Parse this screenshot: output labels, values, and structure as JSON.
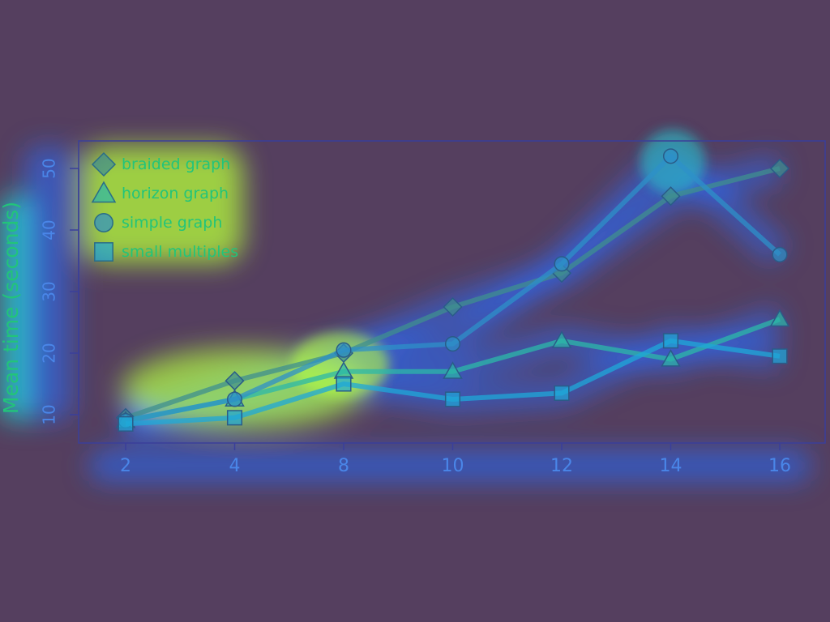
{
  "colors": {
    "background": "#553f5f",
    "frame": "#3a3f9a",
    "axis_text": "#4a86e8",
    "ylabel": "#22c47a",
    "legend_text": "#22c47a",
    "heat_low": "#2a6cff",
    "heat_mid": "#22d8d0",
    "heat_high": "#b6ff3a"
  },
  "chart_data": {
    "type": "line",
    "title": "",
    "xlabel": "",
    "ylabel": "Mean time (seconds)",
    "categories": [
      "2",
      "4",
      "8",
      "10",
      "12",
      "14",
      "16"
    ],
    "yticks": [
      10,
      20,
      30,
      40,
      50
    ],
    "ylim": [
      5,
      55
    ],
    "grid": false,
    "legend_position": "top-left",
    "series": [
      {
        "name": "braided graph",
        "marker": "diamond",
        "color": "#3f8f8f",
        "values": [
          9.5,
          15.5,
          20,
          27.5,
          33,
          45.5,
          50
        ]
      },
      {
        "name": "horizon graph",
        "marker": "triangle",
        "color": "#2cb8a8",
        "values": [
          9,
          12.5,
          17,
          17,
          22,
          19,
          25.5
        ]
      },
      {
        "name": "simple graph",
        "marker": "circle",
        "color": "#2e90c8",
        "values": [
          9,
          12.5,
          20.5,
          21.5,
          34.5,
          52,
          36
        ]
      },
      {
        "name": "small multiples",
        "marker": "square",
        "color": "#1fa8d8",
        "values": [
          8.5,
          9.5,
          15,
          12.5,
          13.5,
          22,
          19.5
        ]
      }
    ]
  }
}
